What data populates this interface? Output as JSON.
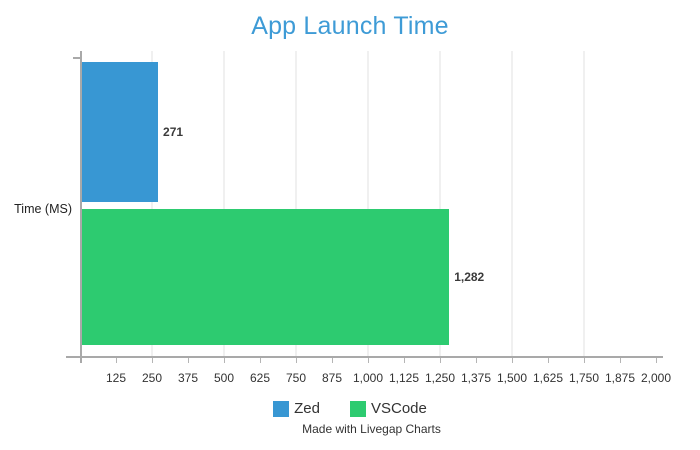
{
  "title": "App Launch Time",
  "axis": {
    "category_label": "Time (MS)"
  },
  "footer": {
    "credit": "Made with Livegap Charts"
  },
  "colors": {
    "title": "#3e9bd6",
    "axis": "#a9a9a9",
    "tick": "#b5b5b5",
    "gridline": "#f0f0f0",
    "tick_text": "#333333"
  },
  "legend": {
    "items": [
      {
        "label": "Zed",
        "color": "#3897d3"
      },
      {
        "label": "VSCode",
        "color": "#2dcb70"
      }
    ]
  },
  "chart_data": {
    "type": "bar",
    "orientation": "horizontal",
    "title": "App Launch Time",
    "categories": [
      "Time (MS)"
    ],
    "series": [
      {
        "name": "Zed",
        "color": "#3897d3",
        "values": [
          271
        ],
        "value_label": "271"
      },
      {
        "name": "VSCode",
        "color": "#2dcb70",
        "values": [
          1282
        ],
        "value_label": "1,282"
      }
    ],
    "xlabel": "",
    "ylabel": "Time (MS)",
    "xlim": [
      0,
      2000
    ],
    "x_tick_values": [
      125,
      250,
      375,
      500,
      625,
      750,
      875,
      1000,
      1125,
      1250,
      1375,
      1500,
      1625,
      1750,
      1875,
      2000
    ],
    "x_tick_labels": [
      "125",
      "250",
      "375",
      "500",
      "625",
      "750",
      "875",
      "1,000",
      "1,125",
      "1,250",
      "1,375",
      "1,500",
      "1,625",
      "1,750",
      "1,875",
      "2,000"
    ],
    "gridline_values": [
      250,
      500,
      750,
      1000,
      1250,
      1500,
      1750
    ],
    "grid": "vertical-only",
    "legend_position": "bottom"
  }
}
